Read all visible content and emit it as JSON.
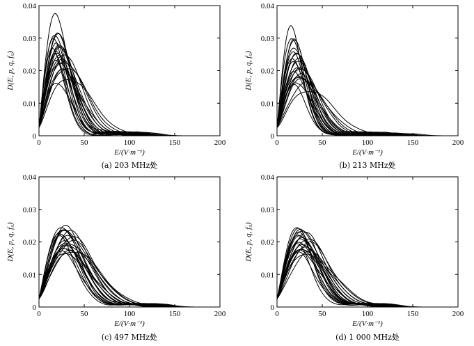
{
  "chart_data": [
    {
      "type": "line",
      "caption": "(a) 203 MHz处",
      "xlabel": "E/(V·m⁻¹)",
      "ylabel": "D(E, p, q, f₀)",
      "xlim": [
        0,
        200
      ],
      "ylim": [
        0,
        0.04
      ],
      "xticks": [
        "0",
        "50",
        "100",
        "150",
        "200"
      ],
      "yticks": [
        "0",
        "0.01",
        "0.02",
        "0.03",
        "0.04"
      ],
      "grid": false,
      "curve_params": {
        "peak_E": [
          19,
          18,
          20,
          21,
          17,
          22,
          18,
          24,
          16,
          19,
          23,
          20,
          26,
          21,
          17,
          28,
          22,
          25,
          19,
          30,
          24,
          27,
          33,
          20
        ],
        "peak_D": [
          0.0365,
          0.0322,
          0.0312,
          0.03,
          0.0293,
          0.0286,
          0.028,
          0.0272,
          0.0268,
          0.0262,
          0.0258,
          0.0252,
          0.0258,
          0.0246,
          0.024,
          0.0235,
          0.0232,
          0.0226,
          0.022,
          0.0214,
          0.0206,
          0.0196,
          0.018,
          0.0168
        ],
        "tail_extent_E": [
          70,
          78,
          85,
          92,
          100,
          108,
          74,
          90,
          96,
          82,
          104,
          88,
          112,
          95,
          80,
          118,
          98,
          106,
          86,
          120,
          110,
          102,
          125,
          94
        ]
      }
    },
    {
      "type": "line",
      "caption": "(b) 213 MHz处",
      "xlabel": "E/(V·m⁻¹)",
      "ylabel": "D(E, p, q, f₀)",
      "xlim": [
        0,
        200
      ],
      "ylim": [
        0,
        0.04
      ],
      "xticks": [
        "0",
        "50",
        "100",
        "150",
        "200"
      ],
      "yticks": [
        "0",
        "0.01",
        "0.02",
        "0.03",
        "0.04"
      ],
      "grid": false,
      "curve_params": {
        "peak_E": [
          16,
          17,
          18,
          19,
          20,
          21,
          17,
          23,
          18,
          22,
          24,
          19,
          25,
          21,
          27,
          20,
          23,
          26,
          29,
          22,
          31,
          18,
          35,
          24
        ],
        "peak_D": [
          0.0323,
          0.031,
          0.0296,
          0.0282,
          0.027,
          0.0262,
          0.0255,
          0.0246,
          0.024,
          0.0232,
          0.0226,
          0.022,
          0.0214,
          0.0208,
          0.0202,
          0.0196,
          0.019,
          0.0182,
          0.0175,
          0.0168,
          0.016,
          0.0152,
          0.0142,
          0.0188
        ],
        "tail_extent_E": [
          78,
          86,
          94,
          102,
          110,
          118,
          84,
          100,
          92,
          108,
          116,
          96,
          124,
          104,
          130,
          98,
          112,
          126,
          134,
          106,
          140,
          88,
          150,
          114
        ]
      }
    },
    {
      "type": "line",
      "caption": "(c) 497 MHz处",
      "xlabel": "E/(V·m⁻¹)",
      "ylabel": "D(E, p, q, f₀)",
      "xlim": [
        0,
        200
      ],
      "ylim": [
        0,
        0.04
      ],
      "xticks": [
        "0",
        "50",
        "100",
        "150",
        "200"
      ],
      "yticks": [
        "0",
        "0.01",
        "0.02",
        "0.03",
        "0.04"
      ],
      "grid": false,
      "curve_params": {
        "peak_E": [
          27,
          25,
          29,
          31,
          24,
          33,
          28,
          26,
          35,
          30,
          23,
          32,
          36,
          27,
          34,
          29,
          25,
          31,
          38,
          28,
          33,
          26
        ],
        "peak_D": [
          0.025,
          0.0246,
          0.024,
          0.0236,
          0.0232,
          0.0228,
          0.0224,
          0.022,
          0.0216,
          0.0212,
          0.0208,
          0.0204,
          0.02,
          0.0196,
          0.0192,
          0.0188,
          0.0184,
          0.018,
          0.0176,
          0.0172,
          0.0168,
          0.0164
        ],
        "tail_extent_E": [
          95,
          102,
          110,
          118,
          98,
          125,
          106,
          100,
          130,
          114,
          96,
          122,
          134,
          104,
          128,
          112,
          99,
          120,
          138,
          108,
          126,
          103
        ]
      }
    },
    {
      "type": "line",
      "caption": "(d) 1 000 MHz处",
      "xlabel": "E/(V·m⁻¹)",
      "ylabel": "D(E, p, q, f₀)",
      "xlim": [
        0,
        200
      ],
      "ylim": [
        0,
        0.04
      ],
      "xticks": [
        "0",
        "50",
        "100",
        "150",
        "200"
      ],
      "yticks": [
        "0",
        "0.01",
        "0.02",
        "0.03",
        "0.04"
      ],
      "grid": false,
      "curve_params": {
        "peak_E": [
          24,
          26,
          22,
          28,
          25,
          30,
          23,
          27,
          32,
          24,
          29,
          26,
          34,
          21,
          31,
          28,
          25,
          33,
          27,
          30,
          36,
          24
        ],
        "peak_D": [
          0.0245,
          0.0241,
          0.0237,
          0.0233,
          0.0229,
          0.0225,
          0.0221,
          0.0217,
          0.0213,
          0.0209,
          0.0205,
          0.0201,
          0.0197,
          0.0193,
          0.0189,
          0.0185,
          0.0181,
          0.0177,
          0.0173,
          0.0169,
          0.0165,
          0.0161
        ],
        "tail_extent_E": [
          92,
          100,
          88,
          106,
          96,
          112,
          90,
          104,
          118,
          94,
          110,
          98,
          122,
          86,
          114,
          102,
          93,
          120,
          101,
          116,
          126,
          97
        ]
      }
    }
  ]
}
